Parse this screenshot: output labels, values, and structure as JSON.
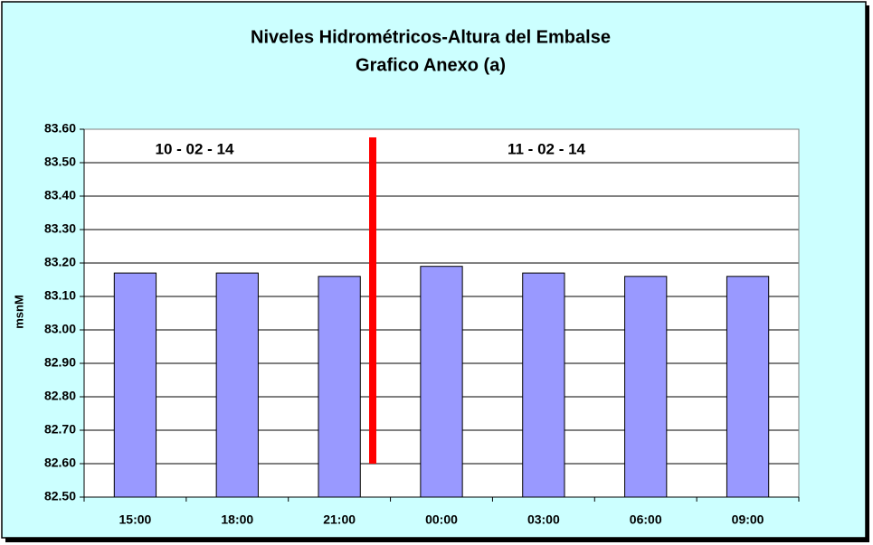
{
  "chart_data": {
    "type": "bar",
    "title": "Niveles Hidrométricos-Altura del Embalse",
    "subtitle": "Grafico Anexo (a)",
    "y_label": "msnM",
    "annotations": [
      "10 - 02 - 14",
      "11 - 02 - 14"
    ],
    "categories": [
      "15:00",
      "18:00",
      "21:00",
      "00:00",
      "03:00",
      "06:00",
      "09:00"
    ],
    "values": [
      83.17,
      83.17,
      83.16,
      83.19,
      83.17,
      83.16,
      83.16
    ],
    "color": "#9999ff",
    "ylim": [
      82.5,
      83.6
    ],
    "yticks": [
      {
        "value": 82.5,
        "label": "82.50"
      },
      {
        "value": 82.6,
        "label": "82.60"
      },
      {
        "value": 82.7,
        "label": "82.70"
      },
      {
        "value": 82.8,
        "label": "82.80"
      },
      {
        "value": 82.9,
        "label": "82.90"
      },
      {
        "value": 83.0,
        "label": "83.00"
      },
      {
        "value": 83.1,
        "label": "83.10"
      },
      {
        "value": 83.2,
        "label": "83.20"
      },
      {
        "value": 83.3,
        "label": "83.30"
      },
      {
        "value": 83.4,
        "label": "83.40"
      },
      {
        "value": 83.5,
        "label": "83.50"
      },
      {
        "value": 83.6,
        "label": "83.60"
      }
    ],
    "grid": true
  }
}
